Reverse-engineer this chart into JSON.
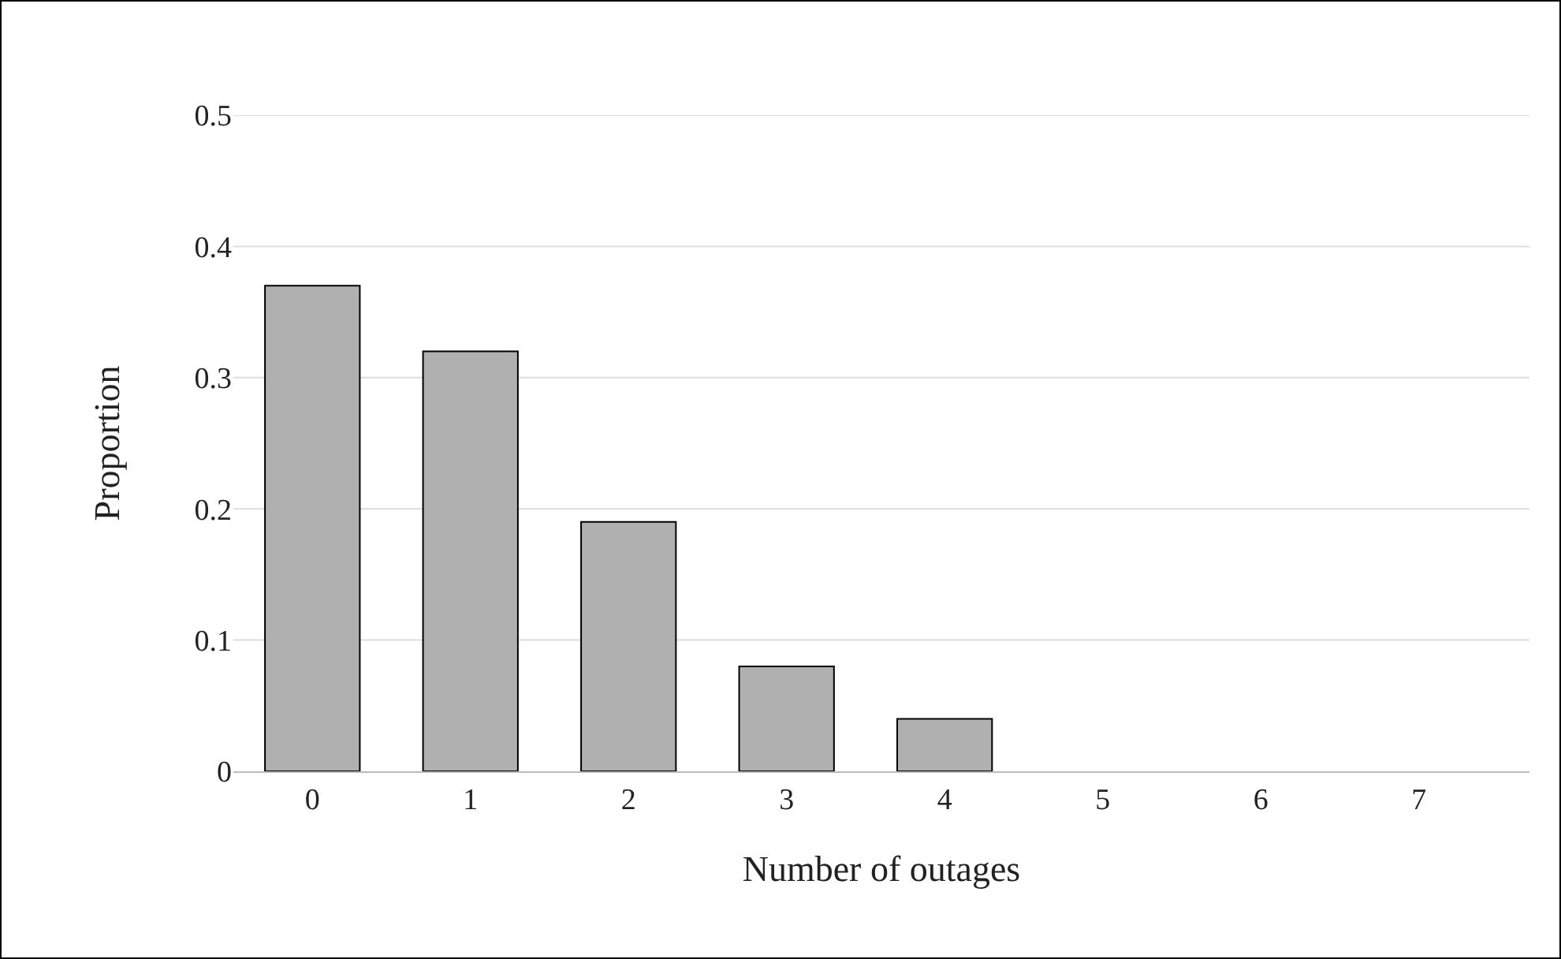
{
  "chart_data": {
    "type": "bar",
    "xlabel": "Number of outages",
    "ylabel": "Proportion",
    "categories": [
      "0",
      "1",
      "2",
      "3",
      "4",
      "5",
      "6",
      "7"
    ],
    "values": [
      0.37,
      0.32,
      0.19,
      0.08,
      0.04,
      0,
      0,
      0
    ],
    "color": "#b0b0b0",
    "ylim": [
      0,
      0.5
    ],
    "yticks": [
      0,
      0.1,
      0.2,
      0.3,
      0.4,
      0.5
    ],
    "grid": "y",
    "legend": false
  }
}
